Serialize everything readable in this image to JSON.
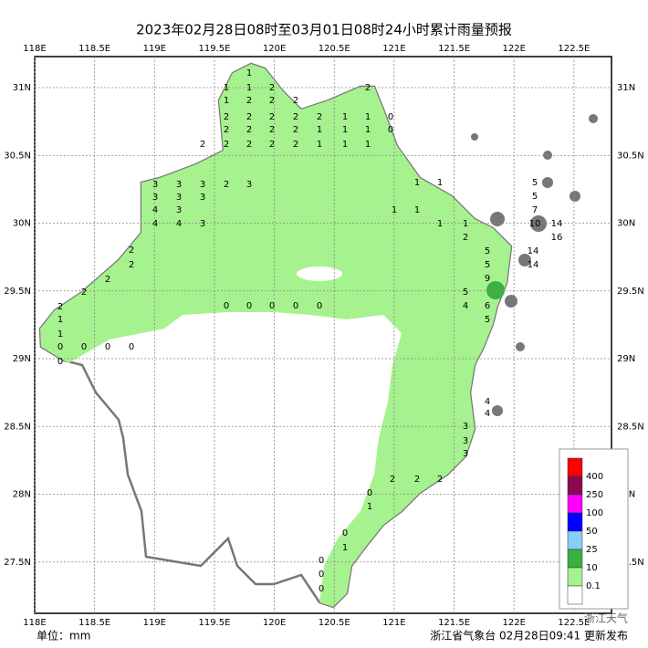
{
  "title": "2023年02月28日08时至03月01日08时24小时累计雨量预报",
  "lon_ticks": [
    {
      "value": 118,
      "label": "118E"
    },
    {
      "value": 118.5,
      "label": "118.5E"
    },
    {
      "value": 119,
      "label": "119E"
    },
    {
      "value": 119.5,
      "label": "119.5E"
    },
    {
      "value": 120,
      "label": "120E"
    },
    {
      "value": 120.5,
      "label": "120.5E"
    },
    {
      "value": 121,
      "label": "121E"
    },
    {
      "value": 121.5,
      "label": "121.5E"
    },
    {
      "value": 122,
      "label": "122E"
    },
    {
      "value": 122.5,
      "label": "122.5E"
    }
  ],
  "lat_ticks": [
    {
      "value": 31,
      "label": "31N"
    },
    {
      "value": 30.5,
      "label": "30.5N"
    },
    {
      "value": 30,
      "label": "30N"
    },
    {
      "value": 29.5,
      "label": "29.5N"
    },
    {
      "value": 29,
      "label": "29N"
    },
    {
      "value": 28.5,
      "label": "28.5N"
    },
    {
      "value": 28,
      "label": "28N"
    },
    {
      "value": 27.5,
      "label": "27.5N"
    }
  ],
  "rain_values": [
    1,
    1,
    1,
    2,
    1,
    2,
    2,
    2,
    2,
    2,
    2,
    2,
    2,
    1,
    1,
    0,
    2,
    2,
    2,
    2,
    1,
    1,
    1,
    0,
    2,
    2,
    2,
    2,
    2,
    1,
    1,
    1,
    3,
    3,
    3,
    2,
    3,
    3,
    3,
    3,
    4,
    3,
    4,
    4,
    3,
    2,
    2,
    2,
    2,
    2,
    1,
    1,
    0,
    0,
    0,
    0,
    0,
    5,
    5,
    7,
    10,
    14,
    16,
    14,
    14,
    9,
    5,
    5,
    5,
    4,
    6,
    5,
    4,
    4,
    3,
    3,
    3,
    2,
    2,
    2,
    0,
    1,
    0,
    1,
    0,
    0,
    0,
    2,
    1,
    2,
    1,
    1,
    1,
    1,
    1,
    0,
    0,
    0,
    0,
    0
  ],
  "legend": {
    "colors": [
      "#ff0000",
      "#8b0a50",
      "#ff00ff",
      "#0000ff",
      "#87cefa",
      "#3cb043",
      "#a6f28e",
      "#ffffff"
    ],
    "levels": [
      400,
      250,
      100,
      50,
      25,
      10,
      0.1
    ]
  },
  "unit": "单位：mm",
  "issuer": "浙江省气象台 02月28日09:41 更新发布",
  "watermark": "浙江天气"
}
